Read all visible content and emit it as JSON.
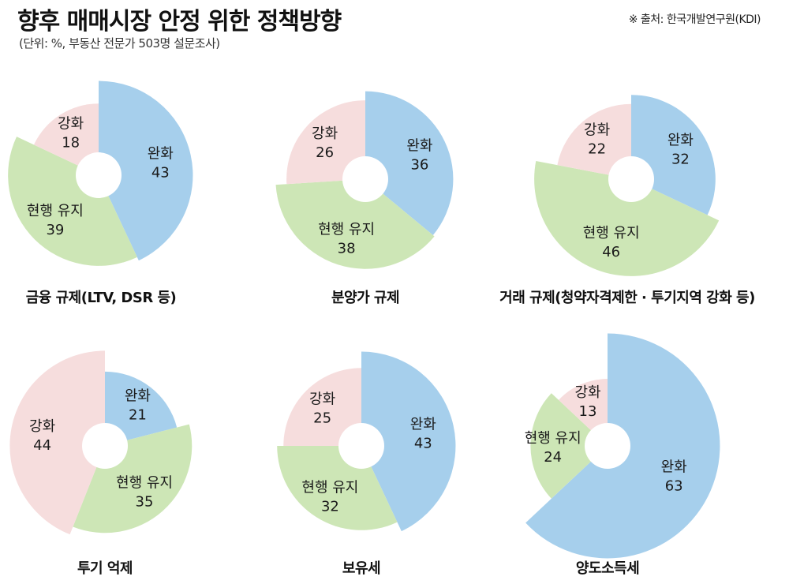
{
  "header": {
    "title": "향후 매매시장 안정 위한 정책방향",
    "subtitle": "(단위: %, 부동산 전문가 503명 설문조사)",
    "source": "※ 출처: 한국개발연구원(KDI)"
  },
  "colors": {
    "완화": "#a6cfec",
    "현행 유지": "#cde6b6",
    "강화": "#f6dddd",
    "hole": "#ffffff"
  },
  "chart_data": [
    {
      "type": "pie",
      "title": "금융 규제(LTV, DSR 등)",
      "slices": [
        {
          "label": "완화",
          "value": 43
        },
        {
          "label": "현행 유지",
          "value": 39
        },
        {
          "label": "강화",
          "value": 18
        }
      ]
    },
    {
      "type": "pie",
      "title": "분양가 규제",
      "slices": [
        {
          "label": "완화",
          "value": 36
        },
        {
          "label": "현행 유지",
          "value": 38
        },
        {
          "label": "강화",
          "value": 26
        }
      ]
    },
    {
      "type": "pie",
      "title": "거래 규제(청약자격제한 · 투기지역 강화 등)",
      "slices": [
        {
          "label": "완화",
          "value": 32
        },
        {
          "label": "현행 유지",
          "value": 46
        },
        {
          "label": "강화",
          "value": 22
        }
      ]
    },
    {
      "type": "pie",
      "title": "투기 억제",
      "slices": [
        {
          "label": "완화",
          "value": 21
        },
        {
          "label": "현행 유지",
          "value": 35
        },
        {
          "label": "강화",
          "value": 44
        }
      ]
    },
    {
      "type": "pie",
      "title": "보유세",
      "slices": [
        {
          "label": "완화",
          "value": 43
        },
        {
          "label": "현행 유지",
          "value": 32
        },
        {
          "label": "강화",
          "value": 25
        }
      ]
    },
    {
      "type": "pie",
      "title": "양도소득세",
      "slices": [
        {
          "label": "완화",
          "value": 63
        },
        {
          "label": "현행 유지",
          "value": 24
        },
        {
          "label": "강화",
          "value": 13
        }
      ]
    }
  ]
}
